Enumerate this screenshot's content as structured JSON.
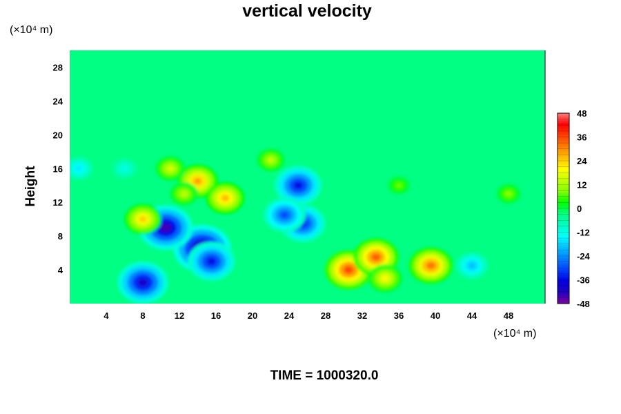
{
  "chart_data": {
    "type": "heatmap",
    "title": "vertical velocity",
    "ylabel": "Height",
    "x_unit_label": "(×10⁴ m)",
    "y_unit_label": "(×10⁴ m)",
    "xlim": [
      0,
      52
    ],
    "ylim": [
      0,
      30
    ],
    "x_ticks": [
      4,
      8,
      12,
      16,
      20,
      24,
      28,
      32,
      36,
      40,
      44,
      48
    ],
    "y_ticks": [
      4,
      8,
      12,
      16,
      20,
      24,
      28
    ],
    "colorbar": {
      "range": [
        -48,
        48
      ],
      "ticks": [
        48,
        36,
        24,
        12,
        0,
        -12,
        -24,
        -36,
        -48
      ],
      "levels": 32,
      "colors": [
        "#8000a0",
        "#2000c0",
        "#0000e0",
        "#0040ff",
        "#0080ff",
        "#00c0ff",
        "#00ffff",
        "#00ffc0",
        "#00ff80",
        "#00ff00",
        "#80ff00",
        "#c0ff00",
        "#ffff00",
        "#ffc000",
        "#ff8000",
        "#ff4000",
        "#ff0000",
        "#ff8080"
      ]
    },
    "background_value": -3,
    "features": [
      {
        "x": 30.5,
        "y": 4.0,
        "value": 36
      },
      {
        "x": 33.5,
        "y": 5.5,
        "value": 34
      },
      {
        "x": 39.5,
        "y": 4.5,
        "value": 32
      },
      {
        "x": 34.5,
        "y": 3.0,
        "value": 20
      },
      {
        "x": 14.5,
        "y": 6.5,
        "value": -48
      },
      {
        "x": 15.5,
        "y": 5.0,
        "value": -36
      },
      {
        "x": 8.0,
        "y": 2.5,
        "value": -40
      },
      {
        "x": 10.5,
        "y": 9.0,
        "value": -44
      },
      {
        "x": 14.0,
        "y": 14.5,
        "value": 28
      },
      {
        "x": 17.0,
        "y": 12.5,
        "value": 26
      },
      {
        "x": 8.0,
        "y": 10.0,
        "value": 24
      },
      {
        "x": 25.0,
        "y": 14.0,
        "value": -36
      },
      {
        "x": 25.5,
        "y": 9.5,
        "value": -34
      },
      {
        "x": 23.5,
        "y": 10.5,
        "value": -30
      },
      {
        "x": 11.0,
        "y": 16.0,
        "value": 16
      },
      {
        "x": 12.5,
        "y": 13.0,
        "value": 14
      },
      {
        "x": 22.0,
        "y": 17.0,
        "value": 14
      },
      {
        "x": 44.0,
        "y": 4.5,
        "value": -20
      },
      {
        "x": 48.0,
        "y": 13.0,
        "value": 10
      },
      {
        "x": 6.0,
        "y": 16.0,
        "value": -12
      },
      {
        "x": 36.0,
        "y": 14.0,
        "value": 8
      },
      {
        "x": 1.0,
        "y": 16.0,
        "value": -16
      }
    ],
    "annotation": "TIME = 1000320.0"
  }
}
